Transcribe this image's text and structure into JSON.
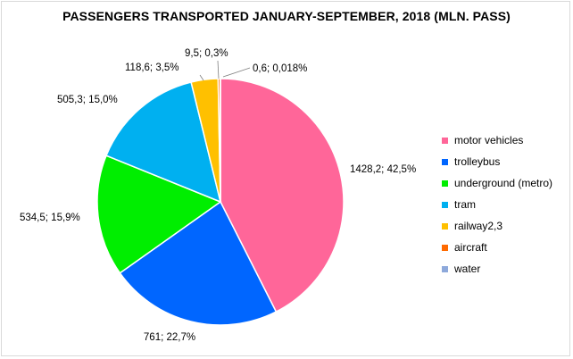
{
  "chart_data": {
    "type": "pie",
    "title": "PASSENGERS TRANSPORTED JANUARY-SEPTEMBER, 2018 (MLN. PASS)",
    "legend_position": "right",
    "series": [
      {
        "name": "motor vehicles",
        "value": 1428.2,
        "label": "1428,2; 42,5%",
        "color": "#ff6699"
      },
      {
        "name": "trolleybus",
        "value": 761,
        "label": "761; 22,7%",
        "color": "#0066ff"
      },
      {
        "name": "underground (metro)",
        "value": 534.5,
        "label": "534,5; 15,9%",
        "color": "#00ee00"
      },
      {
        "name": "tram",
        "value": 505.3,
        "label": "505,3; 15,0%",
        "color": "#00b0f0"
      },
      {
        "name": "railway2,3",
        "value": 118.6,
        "label": "118,6; 3,5%",
        "color": "#ffc000"
      },
      {
        "name": "aircraft",
        "value": 9.5,
        "label": "9,5; 0,3%",
        "color": "#ff6a00"
      },
      {
        "name": "water",
        "value": 0.6,
        "label": "0,6; 0,018%",
        "color": "#8ea9db"
      }
    ]
  }
}
